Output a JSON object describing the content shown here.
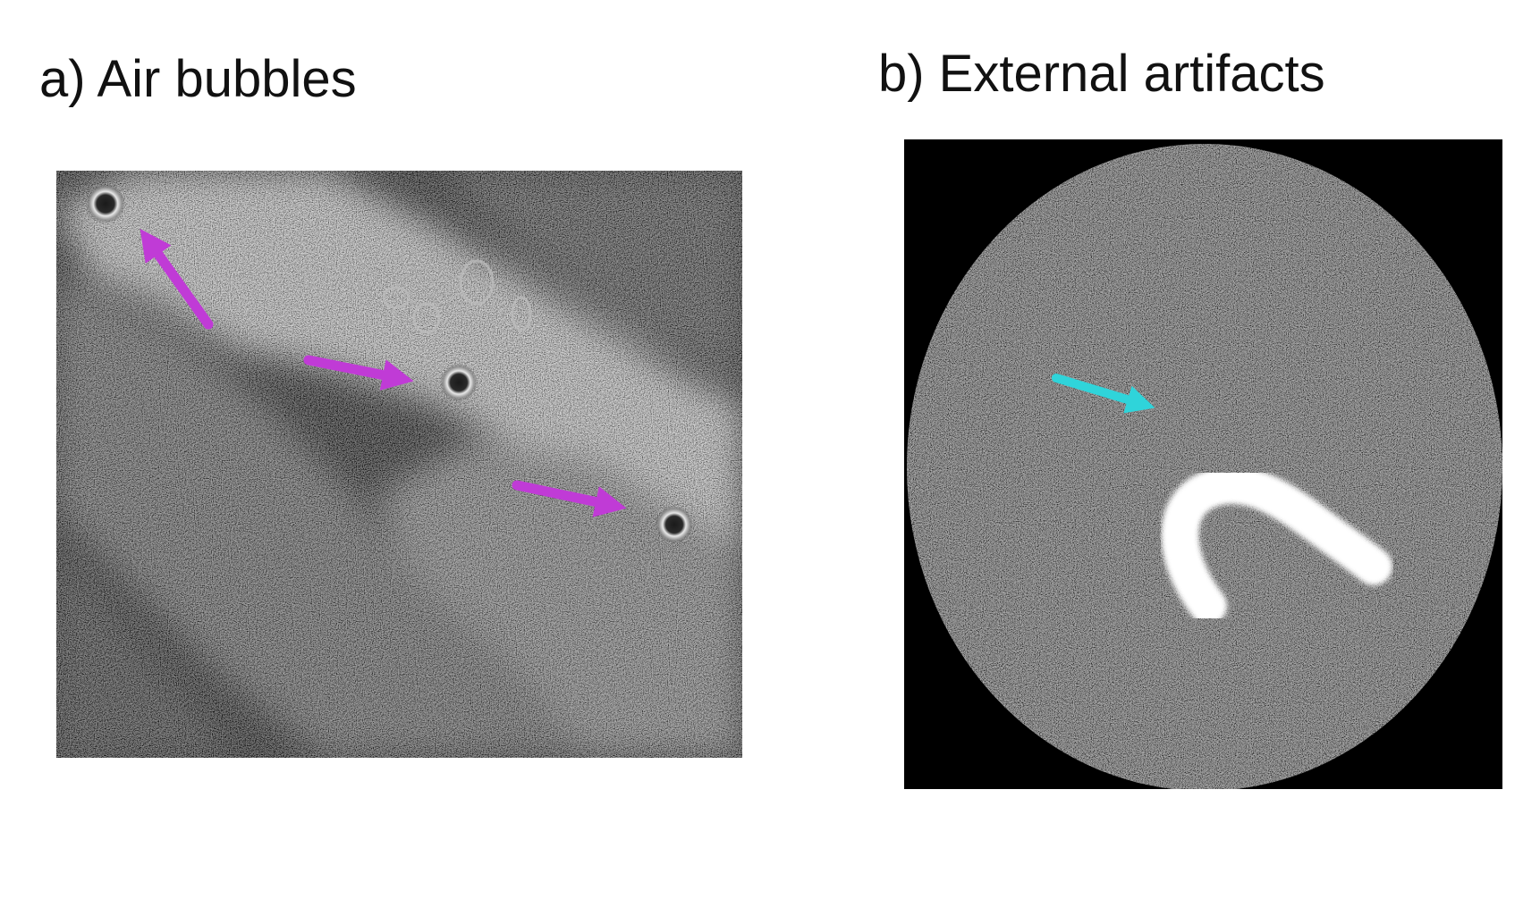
{
  "panels": {
    "a": {
      "title": "a) Air bubbles",
      "arrow_color": "#c03bd6",
      "arrow_count": 3,
      "bubble_count": 3
    },
    "b": {
      "title": "b) External artifacts",
      "arrow_color": "#2fd4da",
      "arrow_count": 1,
      "artifact_icon": "hook-shaped-artifact"
    }
  }
}
